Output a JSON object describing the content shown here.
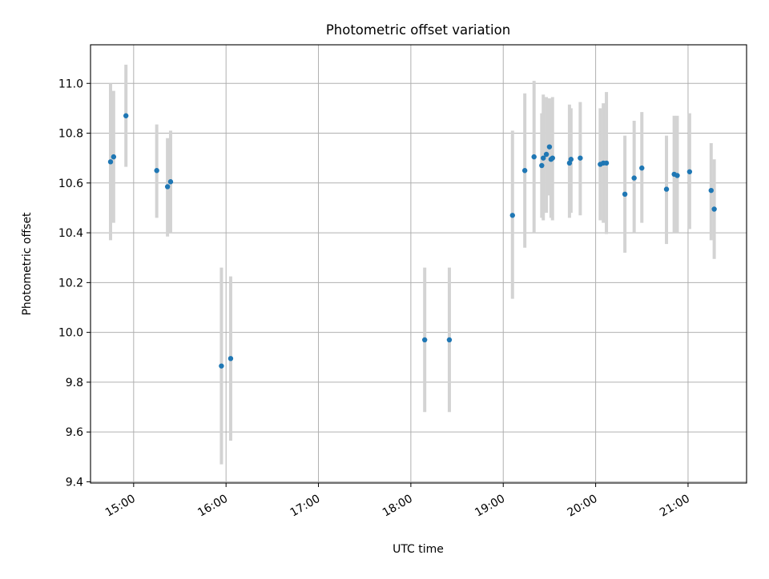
{
  "chart_data": {
    "type": "scatter",
    "title": "Photometric offset variation",
    "xlabel": "UTC time",
    "ylabel": "Photometric offset",
    "xlim": [
      "14:32",
      "21:38"
    ],
    "ylim": [
      9.395,
      11.155
    ],
    "x_ticks": [
      "15:00",
      "16:00",
      "17:00",
      "18:00",
      "19:00",
      "20:00",
      "21:00"
    ],
    "y_ticks": [
      "9.4",
      "9.6",
      "9.8",
      "10.0",
      "10.2",
      "10.4",
      "10.6",
      "10.8",
      "11.0"
    ],
    "grid": true,
    "marker_color": "#1f77b4",
    "errorbar_color": "#d3d3d3",
    "points": [
      {
        "t": "14:45",
        "y": 10.685,
        "lo": 10.37,
        "hi": 11.0
      },
      {
        "t": "14:47",
        "y": 10.705,
        "lo": 10.44,
        "hi": 10.97
      },
      {
        "t": "14:55",
        "y": 10.87,
        "lo": 10.665,
        "hi": 11.075
      },
      {
        "t": "15:15",
        "y": 10.65,
        "lo": 10.46,
        "hi": 10.835
      },
      {
        "t": "15:22",
        "y": 10.585,
        "lo": 10.385,
        "hi": 10.78
      },
      {
        "t": "15:24",
        "y": 10.605,
        "lo": 10.4,
        "hi": 10.81
      },
      {
        "t": "15:57",
        "y": 9.865,
        "lo": 9.47,
        "hi": 10.26
      },
      {
        "t": "16:03",
        "y": 9.895,
        "lo": 9.565,
        "hi": 10.225
      },
      {
        "t": "18:09",
        "y": 9.97,
        "lo": 9.68,
        "hi": 10.26
      },
      {
        "t": "18:25",
        "y": 9.97,
        "lo": 9.68,
        "hi": 10.26
      },
      {
        "t": "19:06",
        "y": 10.47,
        "lo": 10.135,
        "hi": 10.81
      },
      {
        "t": "19:14",
        "y": 10.65,
        "lo": 10.34,
        "hi": 10.96
      },
      {
        "t": "19:20",
        "y": 10.705,
        "lo": 10.4,
        "hi": 11.01
      },
      {
        "t": "19:25",
        "y": 10.67,
        "lo": 10.46,
        "hi": 10.88
      },
      {
        "t": "19:26",
        "y": 10.7,
        "lo": 10.45,
        "hi": 10.955
      },
      {
        "t": "19:28",
        "y": 10.715,
        "lo": 10.48,
        "hi": 10.945
      },
      {
        "t": "19:30",
        "y": 10.745,
        "lo": 10.55,
        "hi": 10.94
      },
      {
        "t": "19:31",
        "y": 10.695,
        "lo": 10.46,
        "hi": 10.92
      },
      {
        "t": "19:32",
        "y": 10.7,
        "lo": 10.45,
        "hi": 10.945
      },
      {
        "t": "19:43",
        "y": 10.68,
        "lo": 10.46,
        "hi": 10.915
      },
      {
        "t": "19:44",
        "y": 10.695,
        "lo": 10.48,
        "hi": 10.9
      },
      {
        "t": "19:50",
        "y": 10.7,
        "lo": 10.47,
        "hi": 10.925
      },
      {
        "t": "20:03",
        "y": 10.675,
        "lo": 10.45,
        "hi": 10.9
      },
      {
        "t": "20:05",
        "y": 10.68,
        "lo": 10.44,
        "hi": 10.92
      },
      {
        "t": "20:07",
        "y": 10.68,
        "lo": 10.395,
        "hi": 10.965
      },
      {
        "t": "20:19",
        "y": 10.555,
        "lo": 10.32,
        "hi": 10.79
      },
      {
        "t": "20:25",
        "y": 10.62,
        "lo": 10.4,
        "hi": 10.85
      },
      {
        "t": "20:30",
        "y": 10.66,
        "lo": 10.44,
        "hi": 10.885
      },
      {
        "t": "20:46",
        "y": 10.575,
        "lo": 10.355,
        "hi": 10.79
      },
      {
        "t": "20:51",
        "y": 10.635,
        "lo": 10.4,
        "hi": 10.87
      },
      {
        "t": "20:53",
        "y": 10.63,
        "lo": 10.4,
        "hi": 10.87
      },
      {
        "t": "21:01",
        "y": 10.645,
        "lo": 10.415,
        "hi": 10.88
      },
      {
        "t": "21:15",
        "y": 10.57,
        "lo": 10.37,
        "hi": 10.76
      },
      {
        "t": "21:17",
        "y": 10.495,
        "lo": 10.295,
        "hi": 10.695
      }
    ]
  }
}
